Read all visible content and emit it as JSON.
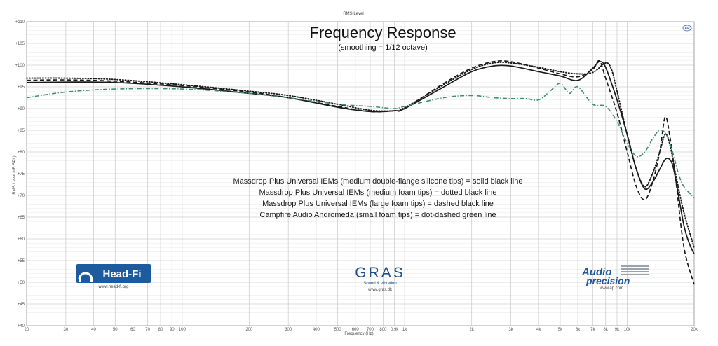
{
  "chart_data": {
    "type": "line",
    "top_label": "RMS Level",
    "title": "Frequency Response",
    "subtitle": "(smoothing = 1/12 octave)",
    "xlabel": "Frequency (Hz)",
    "ylabel": "RMS Level (dB SPL)",
    "x_scale": "log",
    "xlim": [
      20,
      20000
    ],
    "ylim": [
      40,
      110
    ],
    "grid": true,
    "x_ticks": [
      {
        "value": 20,
        "label": "20"
      },
      {
        "value": 30,
        "label": "30"
      },
      {
        "value": 40,
        "label": "40"
      },
      {
        "value": 50,
        "label": "50"
      },
      {
        "value": 60,
        "label": "60"
      },
      {
        "value": 70,
        "label": "70"
      },
      {
        "value": 80,
        "label": "80"
      },
      {
        "value": 90,
        "label": "90"
      },
      {
        "value": 100,
        "label": "100"
      },
      {
        "value": 200,
        "label": "200"
      },
      {
        "value": 300,
        "label": "300"
      },
      {
        "value": 400,
        "label": "400"
      },
      {
        "value": 500,
        "label": "500"
      },
      {
        "value": 600,
        "label": "600"
      },
      {
        "value": 700,
        "label": "700"
      },
      {
        "value": 800,
        "label": "800"
      },
      {
        "value": 900,
        "label": "0.9k"
      },
      {
        "value": 1000,
        "label": "1k"
      },
      {
        "value": 2000,
        "label": "2k"
      },
      {
        "value": 3000,
        "label": "3k"
      },
      {
        "value": 4000,
        "label": "4k"
      },
      {
        "value": 5000,
        "label": "5k"
      },
      {
        "value": 6000,
        "label": "6k"
      },
      {
        "value": 7000,
        "label": "7k"
      },
      {
        "value": 8000,
        "label": "8k"
      },
      {
        "value": 9000,
        "label": "9k"
      },
      {
        "value": 10000,
        "label": "10k"
      },
      {
        "value": 20000,
        "label": "20k"
      }
    ],
    "y_ticks": [
      {
        "value": 110,
        "label": "+110"
      },
      {
        "value": 105,
        "label": "+105"
      },
      {
        "value": 100,
        "label": "+100"
      },
      {
        "value": 95,
        "label": "+95"
      },
      {
        "value": 90,
        "label": "+90"
      },
      {
        "value": 85,
        "label": "+85"
      },
      {
        "value": 80,
        "label": "+80"
      },
      {
        "value": 75,
        "label": "+75"
      },
      {
        "value": 70,
        "label": "+70"
      },
      {
        "value": 65,
        "label": "+65"
      },
      {
        "value": 60,
        "label": "+60"
      },
      {
        "value": 55,
        "label": "+55"
      },
      {
        "value": 50,
        "label": "+50"
      },
      {
        "value": 45,
        "label": "+45"
      },
      {
        "value": 40,
        "label": "+40"
      }
    ],
    "series": [
      {
        "name": "Massdrop Plus Universal IEMs (medium double-flange silicone tips)",
        "style": "solid",
        "color": "#1a1a1a",
        "points": [
          [
            20,
            96
          ],
          [
            30,
            96.1
          ],
          [
            50,
            96
          ],
          [
            100,
            95
          ],
          [
            200,
            93.5
          ],
          [
            300,
            92.5
          ],
          [
            500,
            90.3
          ],
          [
            700,
            89.3
          ],
          [
            900,
            89.5
          ],
          [
            1000,
            90
          ],
          [
            1500,
            95
          ],
          [
            2000,
            98.5
          ],
          [
            2500,
            99.8
          ],
          [
            3000,
            99.8
          ],
          [
            4000,
            98.5
          ],
          [
            5000,
            97.5
          ],
          [
            6000,
            96.5
          ],
          [
            7000,
            99.3
          ],
          [
            7500,
            100.8
          ],
          [
            8000,
            99.5
          ],
          [
            9000,
            92
          ],
          [
            10000,
            84
          ],
          [
            11000,
            76
          ],
          [
            12000,
            71.5
          ],
          [
            13000,
            73
          ],
          [
            14000,
            76
          ],
          [
            15000,
            78.5
          ],
          [
            16000,
            77
          ],
          [
            17000,
            70
          ],
          [
            18000,
            63
          ],
          [
            19000,
            59
          ],
          [
            20000,
            56.5
          ]
        ]
      },
      {
        "name": "Massdrop Plus Universal IEMs (medium foam tips)",
        "style": "dotted",
        "color": "#1a1a1a",
        "points": [
          [
            20,
            97
          ],
          [
            30,
            97
          ],
          [
            50,
            96.7
          ],
          [
            100,
            95.5
          ],
          [
            200,
            94
          ],
          [
            300,
            93
          ],
          [
            500,
            91
          ],
          [
            700,
            89.6
          ],
          [
            900,
            89.5
          ],
          [
            1000,
            90.2
          ],
          [
            1500,
            95.5
          ],
          [
            2000,
            99
          ],
          [
            2500,
            100.5
          ],
          [
            3000,
            100.5
          ],
          [
            4000,
            99.5
          ],
          [
            5000,
            98.5
          ],
          [
            6000,
            98
          ],
          [
            7000,
            98.3
          ],
          [
            8000,
            100.5
          ],
          [
            8500,
            99
          ],
          [
            9000,
            94
          ],
          [
            10000,
            84
          ],
          [
            11000,
            76
          ],
          [
            12000,
            72
          ],
          [
            13000,
            75
          ],
          [
            14000,
            80
          ],
          [
            14800,
            84
          ],
          [
            15500,
            82
          ],
          [
            16500,
            75
          ],
          [
            18000,
            66
          ],
          [
            20000,
            58
          ]
        ]
      },
      {
        "name": "Massdrop Plus Universal IEMs (large foam tips)",
        "style": "dashed",
        "color": "#1a1a1a",
        "points": [
          [
            20,
            96.5
          ],
          [
            30,
            96.6
          ],
          [
            50,
            96.3
          ],
          [
            100,
            95.3
          ],
          [
            200,
            93.8
          ],
          [
            300,
            92.5
          ],
          [
            500,
            90.5
          ],
          [
            700,
            89.3
          ],
          [
            900,
            89.5
          ],
          [
            1000,
            90
          ],
          [
            1500,
            95.8
          ],
          [
            2000,
            99.3
          ],
          [
            2500,
            100.8
          ],
          [
            3000,
            100.8
          ],
          [
            4000,
            99.3
          ],
          [
            5000,
            98
          ],
          [
            6000,
            97.3
          ],
          [
            7000,
            99
          ],
          [
            7500,
            101
          ],
          [
            8000,
            97
          ],
          [
            9000,
            89
          ],
          [
            10000,
            80
          ],
          [
            11000,
            72
          ],
          [
            12000,
            69
          ],
          [
            13000,
            73
          ],
          [
            14000,
            80
          ],
          [
            14800,
            88
          ],
          [
            15500,
            84
          ],
          [
            16500,
            74
          ],
          [
            18000,
            58
          ],
          [
            20000,
            49.5
          ]
        ]
      },
      {
        "name": "Campfire Audio Andromeda (small foam tips)",
        "style": "dot-dashed",
        "color": "#3e8e6e",
        "points": [
          [
            20,
            92.5
          ],
          [
            30,
            93.8
          ],
          [
            50,
            94.5
          ],
          [
            100,
            94.5
          ],
          [
            200,
            93.5
          ],
          [
            300,
            92.5
          ],
          [
            500,
            91
          ],
          [
            700,
            90.5
          ],
          [
            900,
            90
          ],
          [
            1000,
            90.5
          ],
          [
            1500,
            92.5
          ],
          [
            2000,
            93
          ],
          [
            2500,
            92.5
          ],
          [
            3000,
            92.3
          ],
          [
            3500,
            92.3
          ],
          [
            4000,
            92
          ],
          [
            4500,
            94
          ],
          [
            5000,
            95.8
          ],
          [
            5500,
            93.5
          ],
          [
            6000,
            95
          ],
          [
            7000,
            91
          ],
          [
            8000,
            90.5
          ],
          [
            9000,
            87
          ],
          [
            10000,
            82
          ],
          [
            11000,
            79
          ],
          [
            12000,
            80
          ],
          [
            13000,
            83
          ],
          [
            14000,
            85
          ],
          [
            15000,
            84
          ],
          [
            16000,
            80
          ],
          [
            17000,
            75
          ],
          [
            18000,
            72
          ],
          [
            20000,
            69.5
          ]
        ]
      }
    ],
    "legend_lines": [
      "Massdrop Plus Universal IEMs (medium double-flange silicone tips) = solid black line",
      "Massdrop Plus Universal IEMs (medium foam tips) = dotted black line",
      "Massdrop Plus Universal IEMs (large foam tips) = dashed black line",
      "Campfire Audio Andromeda (small foam tips) = dot-dashed green line"
    ]
  },
  "logos": {
    "headfi": {
      "text": "Head-Fi",
      "url_text": "www.head-fi.org",
      "color": "#1d5a9e"
    },
    "gras": {
      "text": "GRAS",
      "tagline": "Sound & vibration",
      "url_text": "www.gras.dk",
      "color": "#1d4f86"
    },
    "ap": {
      "text_top": "Audio",
      "text_bottom": "precision",
      "url_text": "www.ap.com",
      "color": "#1d5a9e"
    },
    "corner_badge": "AP"
  }
}
